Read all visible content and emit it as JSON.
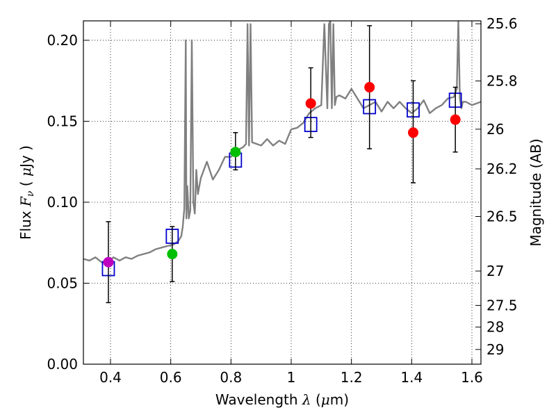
{
  "chart_data": {
    "type": "scatter",
    "xlabel": {
      "text": "Wavelength",
      "symbol": "λ",
      "unit_open": "(",
      "unit_mu": "μ",
      "unit_rest": "m)"
    },
    "ylabel": {
      "text": "Flux",
      "symbol": "F",
      "sub": "ν",
      "unit_open": "(",
      "unit_mu": "μ",
      "unit_rest": "Jy",
      "unit_close": ")"
    },
    "y2label": "Magnitude (AB)",
    "xlim": [
      0.31,
      1.63
    ],
    "ylim": [
      0.0,
      0.212
    ],
    "grid": true,
    "x_ticks": [
      {
        "value": 0.4,
        "label": "0.4"
      },
      {
        "value": 0.6,
        "label": "0.6"
      },
      {
        "value": 0.8,
        "label": "0.8"
      },
      {
        "value": 1.0,
        "label": "1"
      },
      {
        "value": 1.2,
        "label": "1.2"
      },
      {
        "value": 1.4,
        "label": "1.4"
      },
      {
        "value": 1.6,
        "label": "1.6"
      }
    ],
    "y_ticks": [
      {
        "value": 0.0,
        "label": "0.00"
      },
      {
        "value": 0.05,
        "label": "0.05"
      },
      {
        "value": 0.1,
        "label": "0.10"
      },
      {
        "value": 0.15,
        "label": "0.15"
      },
      {
        "value": 0.2,
        "label": "0.20"
      }
    ],
    "y2_ticks": [
      {
        "flux": 0.2102,
        "label": "25.6"
      },
      {
        "flux": 0.1749,
        "label": "25.8"
      },
      {
        "flux": 0.1451,
        "label": "26"
      },
      {
        "flux": 0.1206,
        "label": "26.2"
      },
      {
        "flux": 0.0912,
        "label": "26.5"
      },
      {
        "flux": 0.0575,
        "label": "27"
      },
      {
        "flux": 0.0363,
        "label": "27.5"
      },
      {
        "flux": 0.0229,
        "label": "28"
      },
      {
        "flux": 0.0091,
        "label": "29"
      }
    ],
    "model_spectrum": {
      "color": "#808080",
      "x": [
        0.31,
        0.33,
        0.35,
        0.37,
        0.39,
        0.41,
        0.43,
        0.45,
        0.47,
        0.49,
        0.51,
        0.53,
        0.55,
        0.57,
        0.59,
        0.61,
        0.625,
        0.635,
        0.64,
        0.645,
        0.65,
        0.652,
        0.655,
        0.66,
        0.665,
        0.67,
        0.675,
        0.68,
        0.685,
        0.69,
        0.7,
        0.72,
        0.74,
        0.76,
        0.78,
        0.8,
        0.82,
        0.84,
        0.85,
        0.855,
        0.86,
        0.865,
        0.87,
        0.9,
        0.92,
        0.94,
        0.96,
        0.98,
        1.0,
        1.02,
        1.04,
        1.06,
        1.08,
        1.1,
        1.11,
        1.12,
        1.125,
        1.13,
        1.135,
        1.14,
        1.145,
        1.15,
        1.16,
        1.18,
        1.2,
        1.22,
        1.24,
        1.26,
        1.28,
        1.3,
        1.32,
        1.34,
        1.36,
        1.38,
        1.4,
        1.42,
        1.44,
        1.46,
        1.48,
        1.5,
        1.52,
        1.54,
        1.55,
        1.555,
        1.56,
        1.565,
        1.57,
        1.58,
        1.6,
        1.63
      ],
      "y": [
        0.065,
        0.064,
        0.066,
        0.063,
        0.063,
        0.066,
        0.064,
        0.066,
        0.065,
        0.067,
        0.068,
        0.069,
        0.071,
        0.072,
        0.073,
        0.074,
        0.076,
        0.079,
        0.085,
        0.096,
        0.2,
        0.09,
        0.11,
        0.09,
        0.095,
        0.2,
        0.1,
        0.093,
        0.12,
        0.105,
        0.115,
        0.125,
        0.114,
        0.12,
        0.128,
        0.128,
        0.132,
        0.134,
        0.136,
        0.21,
        0.135,
        0.21,
        0.137,
        0.135,
        0.139,
        0.135,
        0.138,
        0.136,
        0.145,
        0.146,
        0.149,
        0.155,
        0.158,
        0.16,
        0.21,
        0.158,
        0.21,
        0.212,
        0.158,
        0.21,
        0.16,
        0.165,
        0.166,
        0.164,
        0.17,
        0.164,
        0.158,
        0.16,
        0.162,
        0.156,
        0.162,
        0.158,
        0.162,
        0.158,
        0.155,
        0.158,
        0.163,
        0.155,
        0.158,
        0.16,
        0.164,
        0.165,
        0.17,
        0.212,
        0.164,
        0.158,
        0.162,
        0.162,
        0.16,
        0.162
      ]
    },
    "photometry": [
      {
        "x": 0.393,
        "y": 0.063,
        "yerr_low": 0.038,
        "yerr_high": 0.088,
        "color": "#bf00bf"
      },
      {
        "x": 0.605,
        "y": 0.068,
        "yerr_low": 0.051,
        "yerr_high": 0.085,
        "color": "#00bf00"
      },
      {
        "x": 0.815,
        "y": 0.131,
        "yerr_low": 0.12,
        "yerr_high": 0.143,
        "color": "#00bf00"
      },
      {
        "x": 1.065,
        "y": 0.161,
        "yerr_low": 0.14,
        "yerr_high": 0.183,
        "color": "#ff0000"
      },
      {
        "x": 1.26,
        "y": 0.171,
        "yerr_low": 0.133,
        "yerr_high": 0.209,
        "color": "#ff0000"
      },
      {
        "x": 1.405,
        "y": 0.143,
        "yerr_low": 0.112,
        "yerr_high": 0.175,
        "color": "#ff0000"
      },
      {
        "x": 1.545,
        "y": 0.151,
        "yerr_low": 0.131,
        "yerr_high": 0.171,
        "color": "#ff0000"
      }
    ],
    "model_photometry": {
      "color": "#0000cc",
      "points": [
        {
          "x": 0.393,
          "y": 0.059
        },
        {
          "x": 0.605,
          "y": 0.079
        },
        {
          "x": 0.815,
          "y": 0.126
        },
        {
          "x": 1.065,
          "y": 0.148
        },
        {
          "x": 1.26,
          "y": 0.159
        },
        {
          "x": 1.405,
          "y": 0.157
        },
        {
          "x": 1.545,
          "y": 0.163
        }
      ]
    }
  }
}
